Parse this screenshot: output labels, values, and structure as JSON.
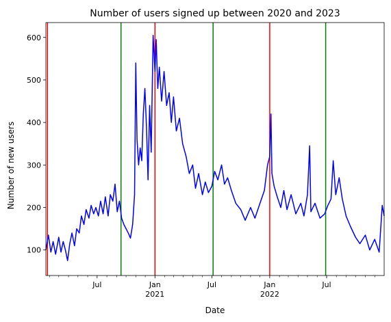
{
  "chart_data": {
    "type": "line",
    "title": "Number of users signed up between 2020 and 2023",
    "xlabel": "Date",
    "ylabel": "Number of new users",
    "x_range": [
      "2020-01-20",
      "2022-12-31"
    ],
    "ylim": [
      40,
      635
    ],
    "grid": false,
    "y_ticks": [
      100,
      200,
      300,
      400,
      500,
      600
    ],
    "x_major_ticks": [
      {
        "date": "2020-07-01",
        "label": "Jul",
        "sublabel": ""
      },
      {
        "date": "2021-01-01",
        "label": "Jan",
        "sublabel": "2021"
      },
      {
        "date": "2021-07-01",
        "label": "Jul",
        "sublabel": ""
      },
      {
        "date": "2022-01-01",
        "label": "Jan",
        "sublabel": "2022"
      },
      {
        "date": "2022-07-01",
        "label": "Jul",
        "sublabel": ""
      }
    ],
    "x_minor_ticks": [
      "2020-02-01",
      "2020-03-01",
      "2020-04-01",
      "2020-05-01",
      "2020-06-01",
      "2020-08-01",
      "2020-09-01",
      "2020-10-01",
      "2020-11-01",
      "2020-12-01",
      "2021-02-01",
      "2021-03-01",
      "2021-04-01",
      "2021-05-01",
      "2021-06-01",
      "2021-08-01",
      "2021-09-01",
      "2021-10-01",
      "2021-11-01",
      "2021-12-01",
      "2022-02-01",
      "2022-03-01",
      "2022-04-01",
      "2022-05-01",
      "2022-06-01",
      "2022-08-01",
      "2022-09-01",
      "2022-10-01",
      "2022-11-01",
      "2022-12-01"
    ],
    "vlines": [
      {
        "date": "2020-01-25",
        "color": "#ff0000"
      },
      {
        "date": "2020-09-15",
        "color": "#008000"
      },
      {
        "date": "2021-01-01",
        "color": "#ff0000"
      },
      {
        "date": "2021-07-05",
        "color": "#008000"
      },
      {
        "date": "2022-01-01",
        "color": "#ff0000"
      },
      {
        "date": "2022-06-28",
        "color": "#008000"
      }
    ],
    "series": [
      {
        "name": "",
        "color": "#0000ff",
        "points": [
          [
            "2020-01-20",
            100
          ],
          [
            "2020-01-28",
            135
          ],
          [
            "2020-02-05",
            95
          ],
          [
            "2020-02-12",
            120
          ],
          [
            "2020-02-20",
            90
          ],
          [
            "2020-03-01",
            130
          ],
          [
            "2020-03-08",
            95
          ],
          [
            "2020-03-15",
            120
          ],
          [
            "2020-03-22",
            100
          ],
          [
            "2020-03-29",
            75
          ],
          [
            "2020-04-05",
            115
          ],
          [
            "2020-04-12",
            140
          ],
          [
            "2020-04-20",
            110
          ],
          [
            "2020-04-27",
            150
          ],
          [
            "2020-05-05",
            140
          ],
          [
            "2020-05-12",
            180
          ],
          [
            "2020-05-20",
            160
          ],
          [
            "2020-05-27",
            195
          ],
          [
            "2020-06-05",
            175
          ],
          [
            "2020-06-12",
            205
          ],
          [
            "2020-06-20",
            185
          ],
          [
            "2020-06-27",
            200
          ],
          [
            "2020-07-05",
            180
          ],
          [
            "2020-07-12",
            215
          ],
          [
            "2020-07-20",
            185
          ],
          [
            "2020-07-27",
            225
          ],
          [
            "2020-08-05",
            180
          ],
          [
            "2020-08-12",
            230
          ],
          [
            "2020-08-20",
            215
          ],
          [
            "2020-08-27",
            255
          ],
          [
            "2020-09-03",
            190
          ],
          [
            "2020-09-10",
            215
          ],
          [
            "2020-09-17",
            175
          ],
          [
            "2020-09-24",
            160
          ],
          [
            "2020-10-01",
            150
          ],
          [
            "2020-10-08",
            140
          ],
          [
            "2020-10-15",
            128
          ],
          [
            "2020-10-22",
            160
          ],
          [
            "2020-10-28",
            230
          ],
          [
            "2020-11-01",
            540
          ],
          [
            "2020-11-05",
            360
          ],
          [
            "2020-11-10",
            300
          ],
          [
            "2020-11-15",
            340
          ],
          [
            "2020-11-20",
            310
          ],
          [
            "2020-11-25",
            420
          ],
          [
            "2020-11-30",
            480
          ],
          [
            "2020-12-05",
            390
          ],
          [
            "2020-12-10",
            265
          ],
          [
            "2020-12-15",
            440
          ],
          [
            "2020-12-20",
            330
          ],
          [
            "2020-12-26",
            605
          ],
          [
            "2021-01-01",
            520
          ],
          [
            "2021-01-05",
            595
          ],
          [
            "2021-01-10",
            480
          ],
          [
            "2021-01-15",
            530
          ],
          [
            "2021-01-22",
            450
          ],
          [
            "2021-01-30",
            520
          ],
          [
            "2021-02-07",
            440
          ],
          [
            "2021-02-15",
            470
          ],
          [
            "2021-02-22",
            400
          ],
          [
            "2021-03-01",
            460
          ],
          [
            "2021-03-10",
            380
          ],
          [
            "2021-03-20",
            410
          ],
          [
            "2021-03-30",
            350
          ],
          [
            "2021-04-10",
            320
          ],
          [
            "2021-04-20",
            280
          ],
          [
            "2021-05-01",
            300
          ],
          [
            "2021-05-10",
            245
          ],
          [
            "2021-05-20",
            280
          ],
          [
            "2021-06-01",
            230
          ],
          [
            "2021-06-10",
            260
          ],
          [
            "2021-06-20",
            235
          ],
          [
            "2021-07-01",
            250
          ],
          [
            "2021-07-10",
            285
          ],
          [
            "2021-07-20",
            265
          ],
          [
            "2021-08-01",
            300
          ],
          [
            "2021-08-10",
            255
          ],
          [
            "2021-08-20",
            270
          ],
          [
            "2021-09-01",
            240
          ],
          [
            "2021-09-15",
            210
          ],
          [
            "2021-10-01",
            195
          ],
          [
            "2021-10-15",
            170
          ],
          [
            "2021-11-01",
            200
          ],
          [
            "2021-11-15",
            175
          ],
          [
            "2021-12-01",
            210
          ],
          [
            "2021-12-15",
            240
          ],
          [
            "2021-12-25",
            300
          ],
          [
            "2022-01-01",
            320
          ],
          [
            "2022-01-05",
            420
          ],
          [
            "2022-01-08",
            280
          ],
          [
            "2022-01-15",
            250
          ],
          [
            "2022-01-25",
            225
          ],
          [
            "2022-02-05",
            200
          ],
          [
            "2022-02-15",
            240
          ],
          [
            "2022-02-25",
            195
          ],
          [
            "2022-03-10",
            230
          ],
          [
            "2022-03-25",
            185
          ],
          [
            "2022-04-10",
            210
          ],
          [
            "2022-04-20",
            180
          ],
          [
            "2022-05-01",
            230
          ],
          [
            "2022-05-08",
            345
          ],
          [
            "2022-05-12",
            190
          ],
          [
            "2022-05-25",
            210
          ],
          [
            "2022-06-10",
            175
          ],
          [
            "2022-06-25",
            185
          ],
          [
            "2022-07-05",
            205
          ],
          [
            "2022-07-15",
            220
          ],
          [
            "2022-07-22",
            310
          ],
          [
            "2022-07-30",
            230
          ],
          [
            "2022-08-10",
            270
          ],
          [
            "2022-08-20",
            220
          ],
          [
            "2022-09-01",
            180
          ],
          [
            "2022-09-15",
            155
          ],
          [
            "2022-10-01",
            130
          ],
          [
            "2022-10-15",
            115
          ],
          [
            "2022-11-01",
            135
          ],
          [
            "2022-11-15",
            100
          ],
          [
            "2022-12-01",
            125
          ],
          [
            "2022-12-15",
            95
          ],
          [
            "2022-12-25",
            205
          ],
          [
            "2022-12-31",
            180
          ]
        ]
      }
    ]
  }
}
